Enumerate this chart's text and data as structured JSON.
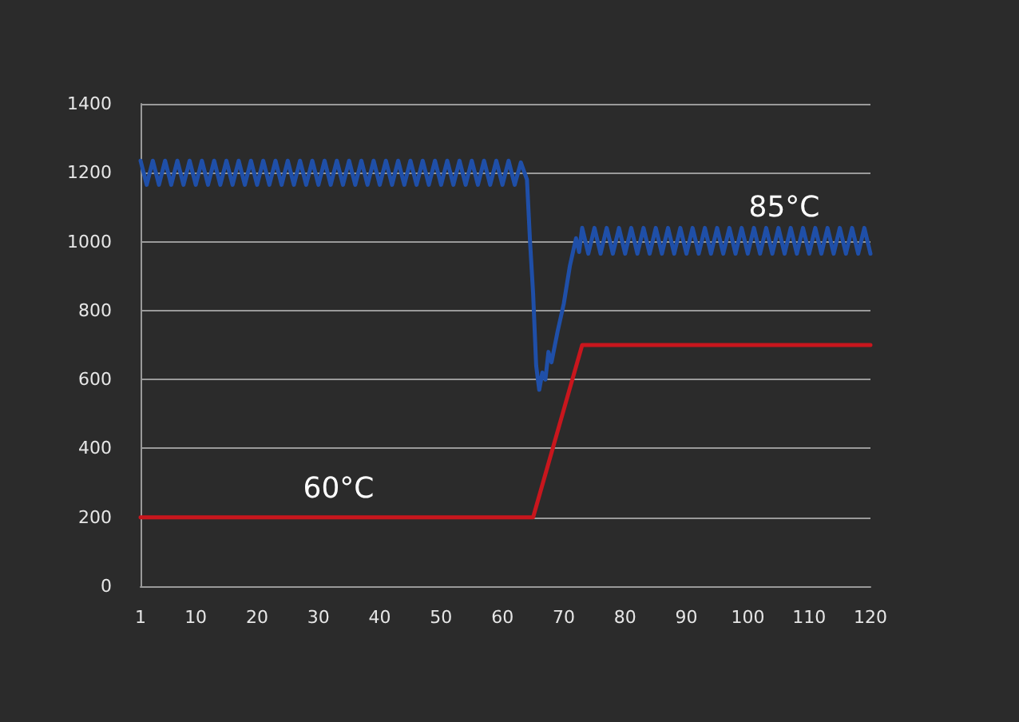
{
  "chart_data": {
    "type": "line",
    "xlim": [
      1,
      120
    ],
    "xticks": [
      1,
      10,
      20,
      30,
      40,
      50,
      60,
      70,
      80,
      90,
      100,
      110,
      120
    ],
    "ylim": [
      0,
      1400
    ],
    "yticks": [
      0,
      200,
      400,
      600,
      800,
      1000,
      1200,
      1400
    ],
    "grid": "y",
    "marker": "none",
    "line_style": "solid",
    "series": [
      {
        "color": "#1f4fa8",
        "x": [
          1,
          2,
          3,
          4,
          5,
          6,
          7,
          8,
          9,
          10,
          11,
          12,
          13,
          14,
          15,
          16,
          17,
          18,
          19,
          20,
          21,
          22,
          23,
          24,
          25,
          26,
          27,
          28,
          29,
          30,
          31,
          32,
          33,
          34,
          35,
          36,
          37,
          38,
          39,
          40,
          41,
          42,
          43,
          44,
          45,
          46,
          47,
          48,
          49,
          50,
          51,
          52,
          53,
          54,
          55,
          56,
          57,
          58,
          59,
          60,
          61,
          62,
          63,
          64,
          64.5,
          65,
          65.5,
          66,
          66.5,
          67,
          67.5,
          68,
          69,
          70,
          71,
          72,
          72.5,
          73,
          74,
          75,
          76,
          77,
          78,
          79,
          80,
          81,
          82,
          83,
          84,
          85,
          86,
          87,
          88,
          89,
          90,
          91,
          92,
          93,
          94,
          95,
          96,
          97,
          98,
          99,
          100,
          101,
          102,
          103,
          104,
          105,
          106,
          107,
          108,
          109,
          110,
          111,
          112,
          113,
          114,
          115,
          116,
          117,
          118,
          119,
          120
        ],
        "values": [
          1235,
          1165,
          1235,
          1165,
          1235,
          1165,
          1235,
          1165,
          1235,
          1165,
          1235,
          1165,
          1235,
          1165,
          1235,
          1165,
          1235,
          1165,
          1235,
          1165,
          1235,
          1165,
          1235,
          1165,
          1235,
          1165,
          1235,
          1165,
          1235,
          1165,
          1235,
          1165,
          1235,
          1165,
          1235,
          1165,
          1235,
          1165,
          1235,
          1165,
          1235,
          1165,
          1235,
          1165,
          1235,
          1165,
          1235,
          1165,
          1235,
          1165,
          1235,
          1165,
          1235,
          1165,
          1235,
          1165,
          1235,
          1165,
          1235,
          1165,
          1235,
          1165,
          1230,
          1180,
          1000,
          850,
          640,
          570,
          620,
          600,
          680,
          650,
          740,
          820,
          930,
          1010,
          970,
          1040,
          965,
          1040,
          965,
          1040,
          965,
          1040,
          965,
          1040,
          965,
          1040,
          965,
          1040,
          965,
          1040,
          965,
          1040,
          965,
          1040,
          965,
          1040,
          965,
          1040,
          965,
          1040,
          965,
          1040,
          965,
          1040,
          965,
          1040,
          965,
          1040,
          965,
          1040,
          965,
          1040,
          965,
          1040,
          965,
          1040,
          965,
          1040,
          965,
          1040,
          965,
          1040,
          965
        ]
      },
      {
        "color": "#c8161d",
        "x": [
          1,
          65,
          73,
          120
        ],
        "values": [
          200,
          200,
          700,
          700
        ]
      }
    ],
    "annotations": [
      "60°C",
      "85°C"
    ]
  }
}
